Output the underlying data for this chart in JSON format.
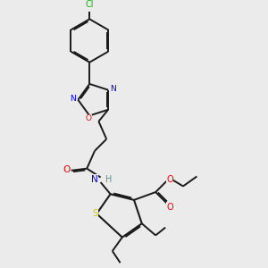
{
  "background_color": "#ebebeb",
  "bond_color": "#1a1a1a",
  "atom_colors": {
    "S": "#cccc00",
    "N": "#0000ee",
    "O": "#ee0000",
    "Cl": "#00bb00",
    "C": "#1a1a1a",
    "H": "#4a9a9a"
  },
  "figsize": [
    3.0,
    3.0
  ],
  "dpi": 100
}
